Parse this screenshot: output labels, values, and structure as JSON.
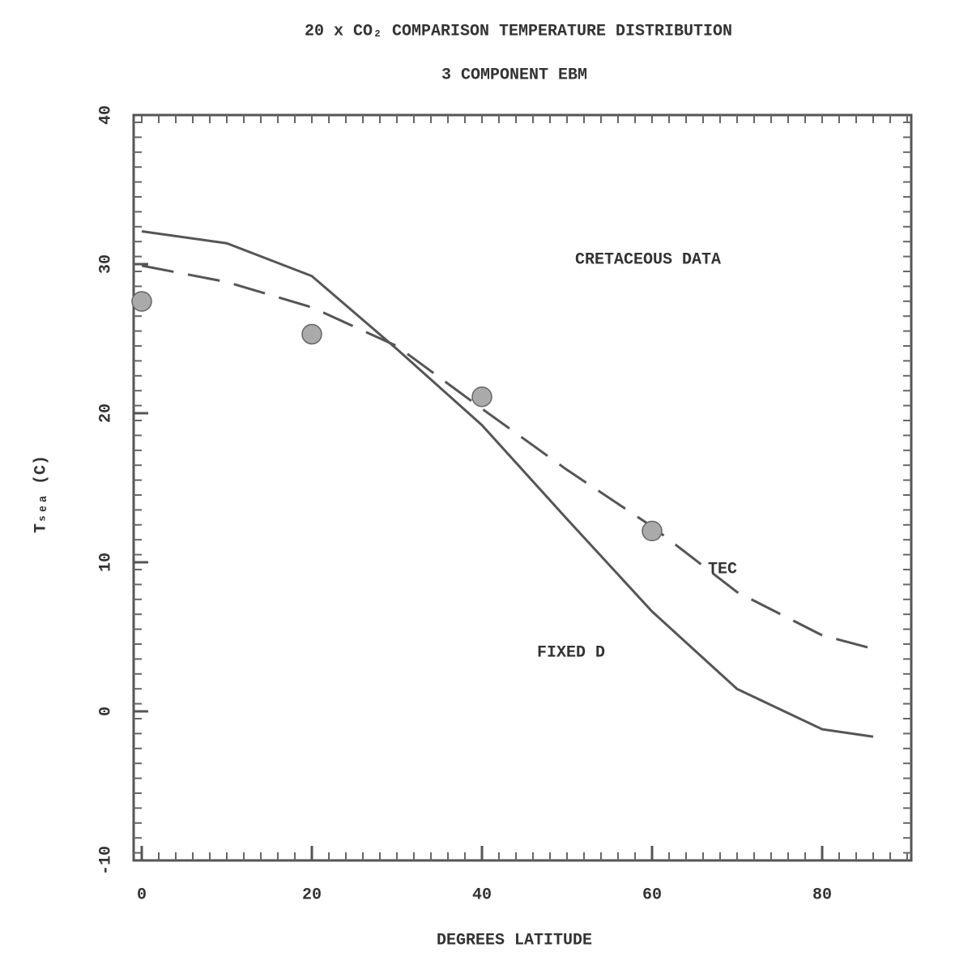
{
  "chart_data": {
    "type": "line",
    "title": "20 x CO₂ COMPARISON TEMPERATURE DISTRIBUTION",
    "subtitle": "3 COMPONENT EBM",
    "xlabel": "DEGREES LATITUDE",
    "ylabel": "Tₛₑₐ (C)",
    "xlim": [
      0,
      90
    ],
    "ylim": [
      -10,
      40
    ],
    "xticks": [
      0,
      20,
      40,
      60,
      80
    ],
    "yticks": [
      -10,
      0,
      10,
      20,
      30,
      40
    ],
    "series": [
      {
        "name": "FIXED D",
        "style": "solid",
        "color": "#555555",
        "x": [
          0,
          10,
          20,
          30,
          40,
          50,
          60,
          70,
          80,
          86
        ],
        "values": [
          32.2,
          31.4,
          29.2,
          24.3,
          19.2,
          12.9,
          6.7,
          1.5,
          -1.2,
          -1.7
        ]
      },
      {
        "name": "TEC",
        "style": "dashed",
        "color": "#555555",
        "x": [
          0,
          10,
          20,
          30,
          40,
          50,
          60,
          70,
          80,
          86
        ],
        "values": [
          29.9,
          28.8,
          27.1,
          24.5,
          20.3,
          16.2,
          12.4,
          8.0,
          5.1,
          4.2
        ]
      },
      {
        "name": "CRETACEOUS DATA",
        "style": "markers",
        "color": "#aaaaaa",
        "x": [
          0,
          20,
          40,
          60
        ],
        "values": [
          27.5,
          25.3,
          21.1,
          12.1
        ]
      }
    ]
  }
}
